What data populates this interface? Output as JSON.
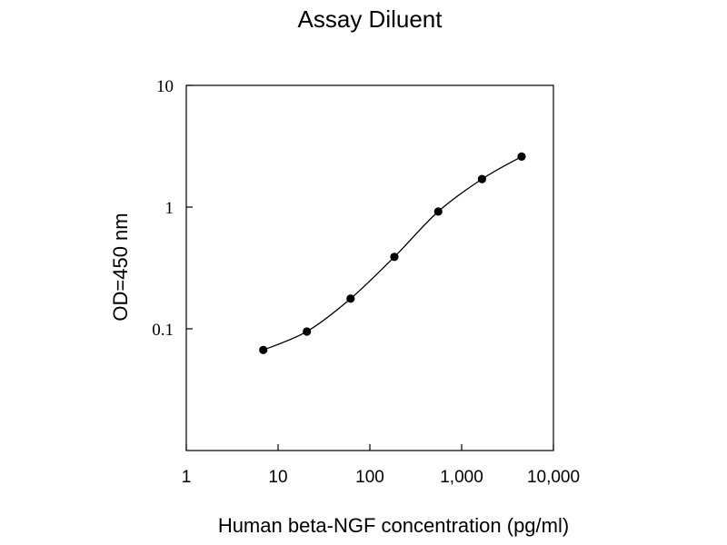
{
  "chart_data": {
    "type": "scatter",
    "title": "Assay Diluent",
    "xlabel": "Human beta-NGF concentration (pg/ml)",
    "ylabel": "OD=450 nm",
    "x_scale": "log",
    "y_scale": "log",
    "xlim": [
      1,
      10000
    ],
    "ylim": [
      0.01,
      10
    ],
    "x_ticks": [
      {
        "value": 1,
        "label": "1"
      },
      {
        "value": 10,
        "label": "10"
      },
      {
        "value": 100,
        "label": "100"
      },
      {
        "value": 1000,
        "label": "1,000"
      },
      {
        "value": 10000,
        "label": "10,000"
      }
    ],
    "y_ticks": [
      {
        "value": 10,
        "label": "10"
      },
      {
        "value": 1,
        "label": "1"
      },
      {
        "value": 0.1,
        "label": "0.1"
      }
    ],
    "grid": false,
    "legend": "none",
    "connected": true,
    "marker": "filled-circle",
    "series": [
      {
        "x": [
          6.9,
          20.6,
          61.7,
          185,
          556,
          1667,
          4500
        ],
        "y": [
          0.067,
          0.095,
          0.177,
          0.39,
          0.92,
          1.7,
          2.6
        ]
      }
    ],
    "colors": {
      "line": "#000000",
      "marker": "#000000",
      "axis": "#000000"
    }
  }
}
